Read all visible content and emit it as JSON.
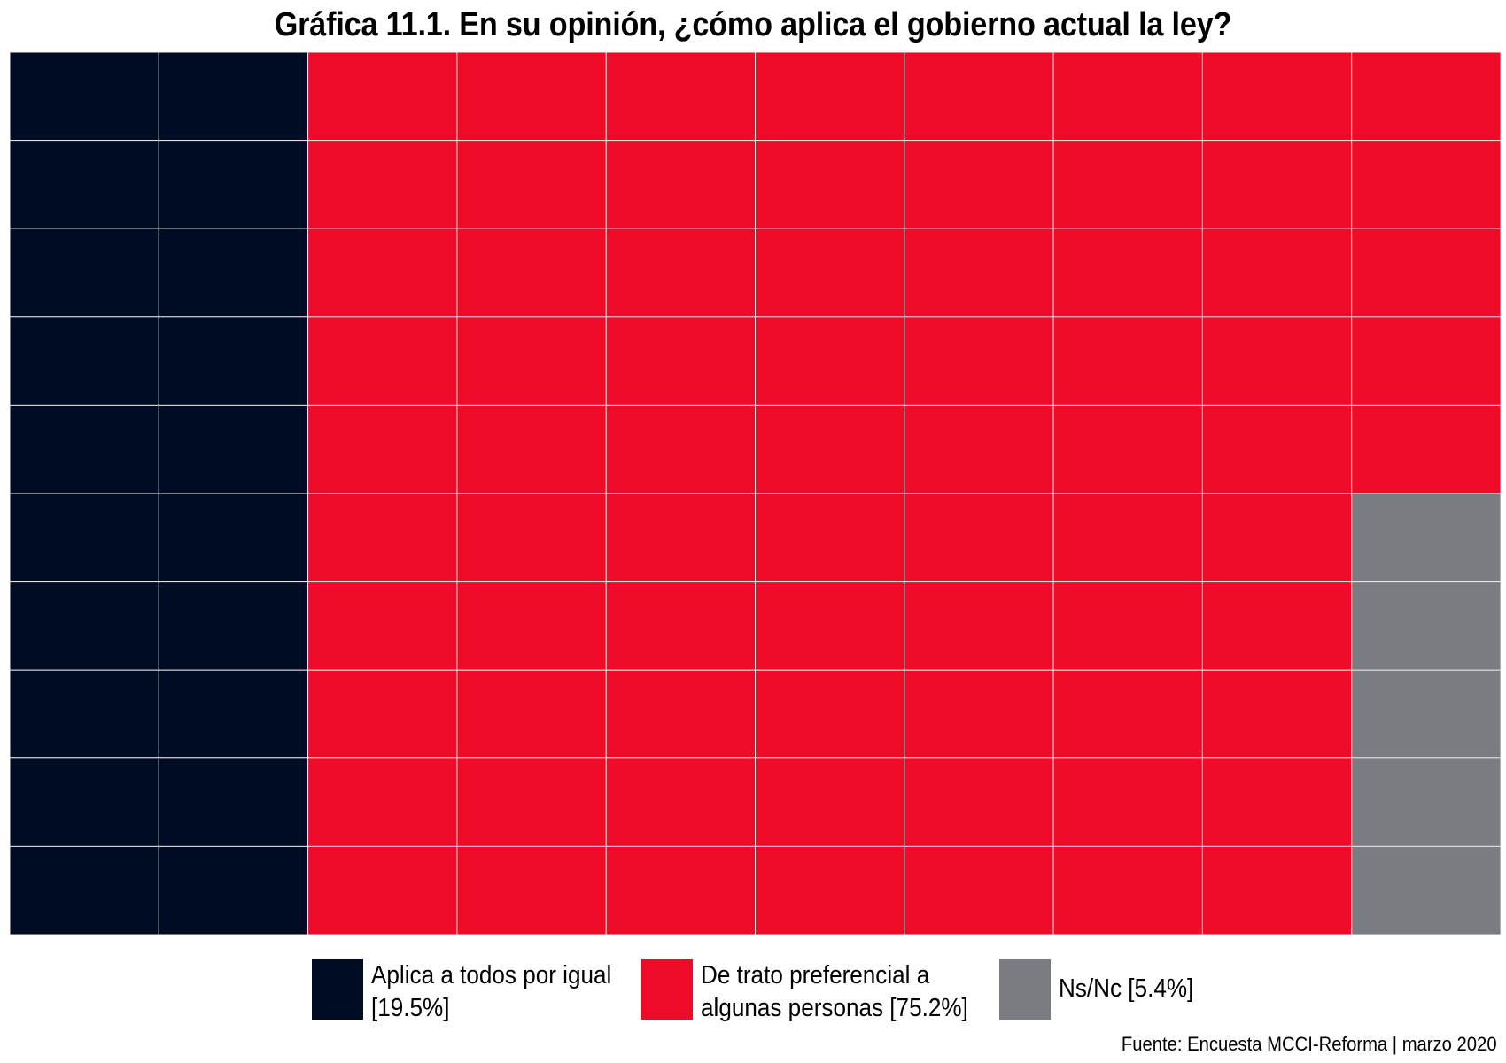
{
  "chart_data": {
    "type": "waffle",
    "title": "Gráfica 11.1. En su opinión, ¿cómo aplica el gobierno actual la ley?",
    "grid": {
      "columns": 10,
      "rows": 10,
      "fill_order": "column-major, top-to-bottom"
    },
    "series": [
      {
        "name": "Aplica a todos por igual",
        "value": 19.5,
        "cells": 20,
        "color": "#000c24"
      },
      {
        "name": "De trato preferencial a algunas personas",
        "value": 75.2,
        "cells": 75,
        "color": "#ef0a28"
      },
      {
        "name": "Ns/Nc",
        "value": 5.4,
        "cells": 5,
        "color": "#7b7c81"
      }
    ],
    "legend": {
      "placement": "bottom",
      "items": [
        {
          "line1": "Aplica a todos por igual",
          "line2": "[19.5%]",
          "color": "#000c24"
        },
        {
          "line1": "De trato preferencial a",
          "line2": "algunas personas [75.2%]",
          "color": "#ef0a28"
        },
        {
          "line1": "Ns/Nc [5.4%]",
          "line2": "",
          "color": "#7b7c81"
        }
      ]
    },
    "source": "Fuente: Encuesta MCCI-Reforma | marzo 2020",
    "grid_line_color": "#e6e6e6"
  }
}
